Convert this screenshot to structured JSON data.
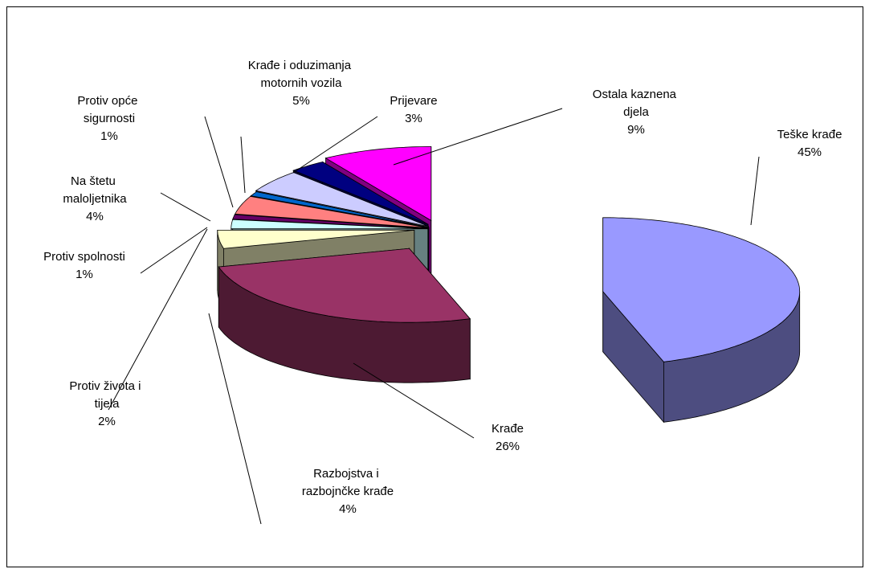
{
  "chart_data": {
    "type": "pie3d",
    "categories": [
      "Teške krađe",
      "Krađe",
      "Razbojstva i razbojnčke krađe",
      "Protiv života i tijela",
      "Protiv spolnosti",
      "Na štetu maloljetnika",
      "Protiv opće sigurnosti",
      "Krađe i oduzimanja motornih vozila",
      "Prijevare",
      "Ostala kaznena djela"
    ],
    "values": [
      45,
      26,
      4,
      2,
      1,
      4,
      1,
      5,
      3,
      9
    ],
    "value_labels": [
      "45%",
      "26%",
      "4%",
      "2%",
      "1%",
      "4%",
      "1%",
      "5%",
      "3%",
      "9%"
    ],
    "colors": [
      "#9999ff",
      "#993366",
      "#ffffcc",
      "#ccffff",
      "#660066",
      "#ff8080",
      "#0066cc",
      "#ccccff",
      "#000080",
      "#ff00ff"
    ]
  }
}
